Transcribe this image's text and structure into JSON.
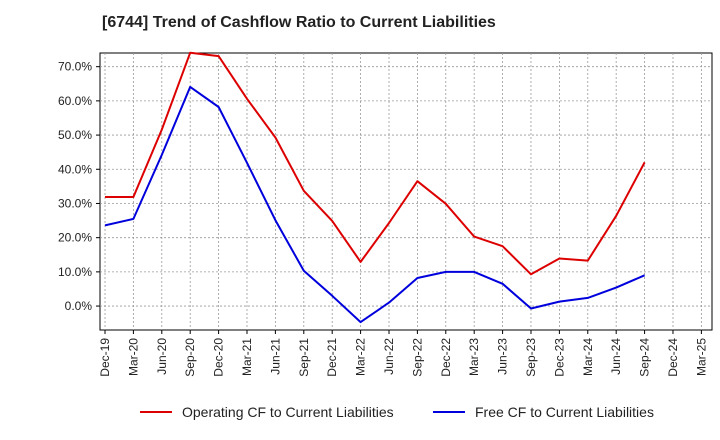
{
  "chart_data": {
    "type": "line",
    "title": "[6744]  Trend of Cashflow Ratio to Current Liabilities",
    "xlabel": "",
    "ylabel": "",
    "categories": [
      "Dec-19",
      "Mar-20",
      "Jun-20",
      "Sep-20",
      "Dec-20",
      "Mar-21",
      "Jun-21",
      "Sep-21",
      "Dec-21",
      "Mar-22",
      "Jun-22",
      "Sep-22",
      "Dec-22",
      "Mar-23",
      "Jun-23",
      "Sep-23",
      "Dec-23",
      "Mar-24",
      "Jun-24",
      "Sep-24",
      "Dec-24",
      "Mar-25"
    ],
    "ylim": [
      -7,
      74
    ],
    "yticks": [
      0,
      10,
      20,
      30,
      40,
      50,
      60,
      70
    ],
    "ytick_labels": [
      "0.0%",
      "10.0%",
      "20.0%",
      "30.0%",
      "40.0%",
      "50.0%",
      "60.0%",
      "70.0%"
    ],
    "grid": true,
    "legend_position": "bottom",
    "series": [
      {
        "name": "Operating CF to Current Liabilities",
        "color": "#dd0000",
        "values": [
          31.9,
          31.9,
          51.6,
          74.1,
          73.1,
          60.6,
          49.3,
          33.7,
          24.9,
          12.9,
          24.3,
          36.5,
          29.9,
          20.3,
          17.5,
          9.3,
          13.9,
          13.3,
          26.4,
          42.0,
          null,
          null
        ]
      },
      {
        "name": "Free CF to Current Liabilities",
        "color": "#0000dd",
        "values": [
          23.6,
          25.5,
          44.2,
          64.1,
          58.2,
          41.9,
          25.1,
          10.3,
          3.0,
          -4.7,
          1.0,
          8.2,
          10.0,
          10.0,
          6.5,
          -0.7,
          1.3,
          2.4,
          5.4,
          9.0,
          null,
          null
        ]
      }
    ]
  }
}
